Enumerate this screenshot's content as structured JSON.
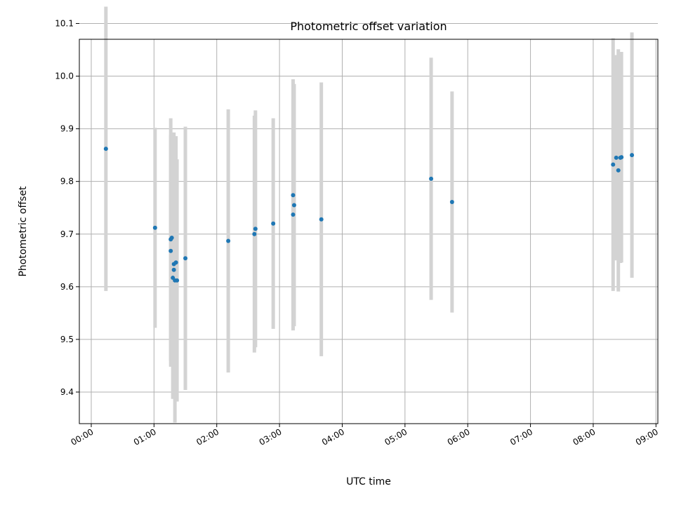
{
  "chart_data": {
    "type": "scatter",
    "title": "Photometric offset variation",
    "xlabel": "UTC time",
    "ylabel": "Photometric offset",
    "grid": true,
    "xlim_hours": [
      -0.19,
      9.03
    ],
    "ylim": [
      9.34,
      10.07
    ],
    "x_ticks": [
      "00:00",
      "01:00",
      "02:00",
      "03:00",
      "04:00",
      "05:00",
      "06:00",
      "07:00",
      "08:00",
      "09:00"
    ],
    "y_ticks": [
      "9.4",
      "9.5",
      "9.6",
      "9.7",
      "9.8",
      "9.9",
      "10.0",
      "10.1"
    ],
    "colors": {
      "point": "#1f77b4",
      "errorbar": "#d3d3d3",
      "grid": "#b0b0b0"
    },
    "points": [
      {
        "time": "00:14",
        "y": 9.862,
        "err": 0.27
      },
      {
        "time": "01:01",
        "y": 9.712,
        "err": 0.19
      },
      {
        "time": "01:16",
        "y": 9.69,
        "err": 0.23
      },
      {
        "time": "01:16",
        "y": 9.668,
        "err": 0.22
      },
      {
        "time": "01:17",
        "y": 9.693,
        "err": 0.2
      },
      {
        "time": "01:18",
        "y": 9.617,
        "err": 0.23
      },
      {
        "time": "01:19",
        "y": 9.632,
        "err": 0.24
      },
      {
        "time": "01:19",
        "y": 9.643,
        "err": 0.25
      },
      {
        "time": "01:20",
        "y": 9.612,
        "err": 0.27
      },
      {
        "time": "01:21",
        "y": 9.646,
        "err": 0.24
      },
      {
        "time": "01:22",
        "y": 9.612,
        "err": 0.23
      },
      {
        "time": "01:30",
        "y": 9.654,
        "err": 0.25
      },
      {
        "time": "02:11",
        "y": 9.687,
        "err": 0.25
      },
      {
        "time": "02:36",
        "y": 9.7,
        "err": 0.225
      },
      {
        "time": "02:37",
        "y": 9.71,
        "err": 0.225
      },
      {
        "time": "02:54",
        "y": 9.72,
        "err": 0.2
      },
      {
        "time": "03:13",
        "y": 9.774,
        "err": 0.22
      },
      {
        "time": "03:13",
        "y": 9.737,
        "err": 0.22
      },
      {
        "time": "03:14",
        "y": 9.755,
        "err": 0.23
      },
      {
        "time": "03:40",
        "y": 9.728,
        "err": 0.26
      },
      {
        "time": "05:25",
        "y": 9.805,
        "err": 0.23
      },
      {
        "time": "05:45",
        "y": 9.761,
        "err": 0.21
      },
      {
        "time": "08:19",
        "y": 9.832,
        "err": 0.24
      },
      {
        "time": "08:22",
        "y": 9.845,
        "err": 0.195
      },
      {
        "time": "08:24",
        "y": 9.821,
        "err": 0.23
      },
      {
        "time": "08:26",
        "y": 9.845,
        "err": 0.2
      },
      {
        "time": "08:27",
        "y": 9.846,
        "err": 0.2
      },
      {
        "time": "08:37",
        "y": 9.85,
        "err": 0.233
      }
    ]
  }
}
